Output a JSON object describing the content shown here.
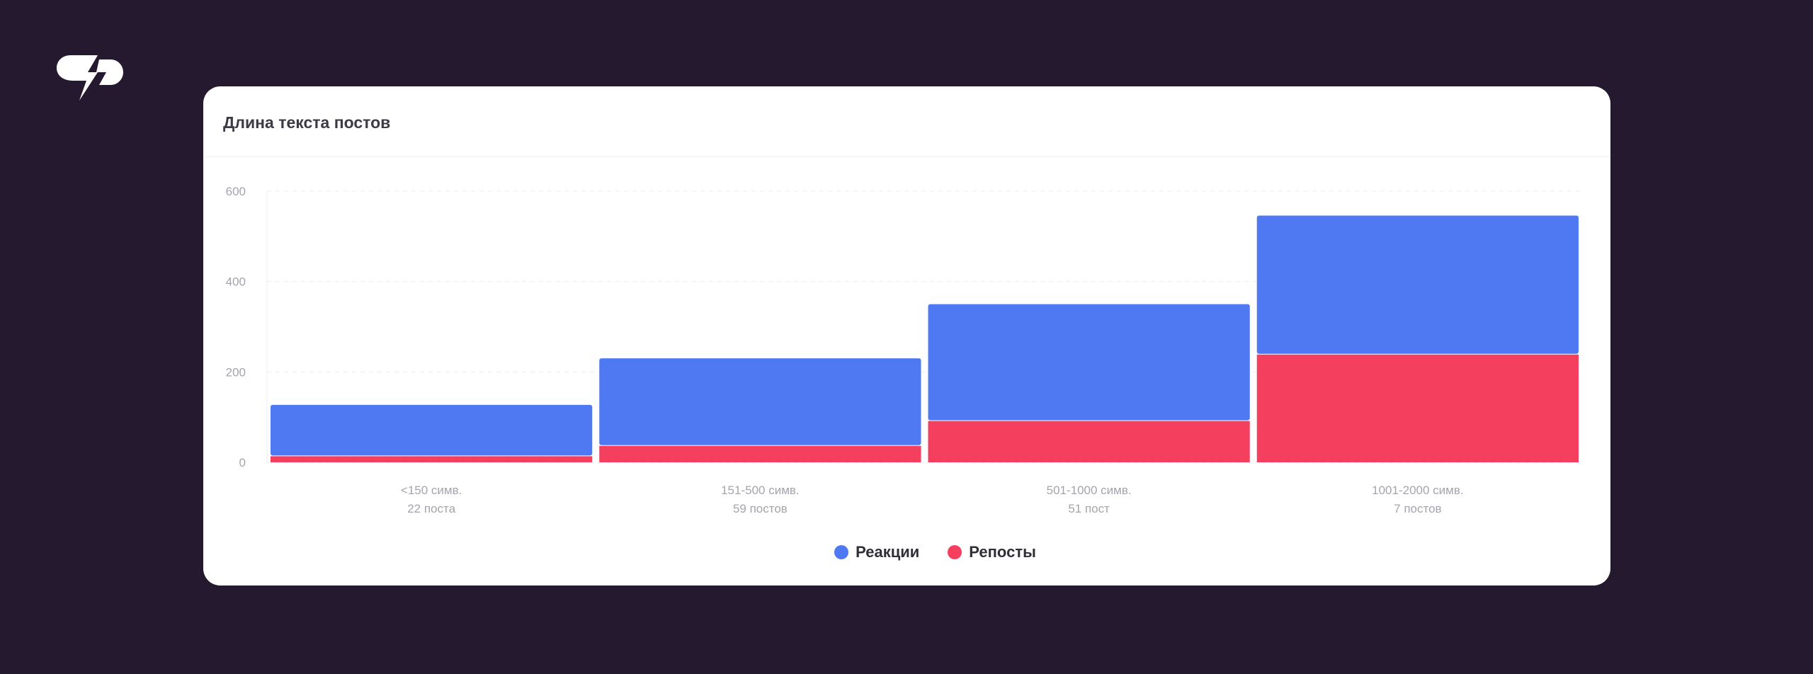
{
  "logo": {
    "icon": "brand-logo-icon"
  },
  "card": {
    "title": "Длина текста постов"
  },
  "colors": {
    "background": "#251930",
    "reactions": "#4f78f3",
    "reposts": "#f43f5e",
    "axis_text": "#a4a4ae",
    "grid": "#ececf0"
  },
  "legend": [
    {
      "label": "Реакции",
      "color": "#4f78f3"
    },
    {
      "label": "Репосты",
      "color": "#f43f5e"
    }
  ],
  "chart_data": {
    "type": "bar",
    "stacked": true,
    "title": "Длина текста постов",
    "categories": [
      "<150 симв.",
      "151-500 симв.",
      "501-1000 симв.",
      "1001-2000 симв."
    ],
    "category_sublabels": [
      "22 поста",
      "59 постов",
      "51 пост",
      "7 постов"
    ],
    "series": [
      {
        "name": "Репосты",
        "color": "#f43f5e",
        "values": [
          15,
          38,
          93,
          240
        ]
      },
      {
        "name": "Реакции",
        "color": "#4f78f3",
        "values": [
          112,
          192,
          257,
          306
        ]
      }
    ],
    "yticks": [
      0,
      200,
      400,
      600
    ],
    "ylim": [
      0,
      600
    ],
    "grid": true,
    "legend_position": "bottom"
  }
}
